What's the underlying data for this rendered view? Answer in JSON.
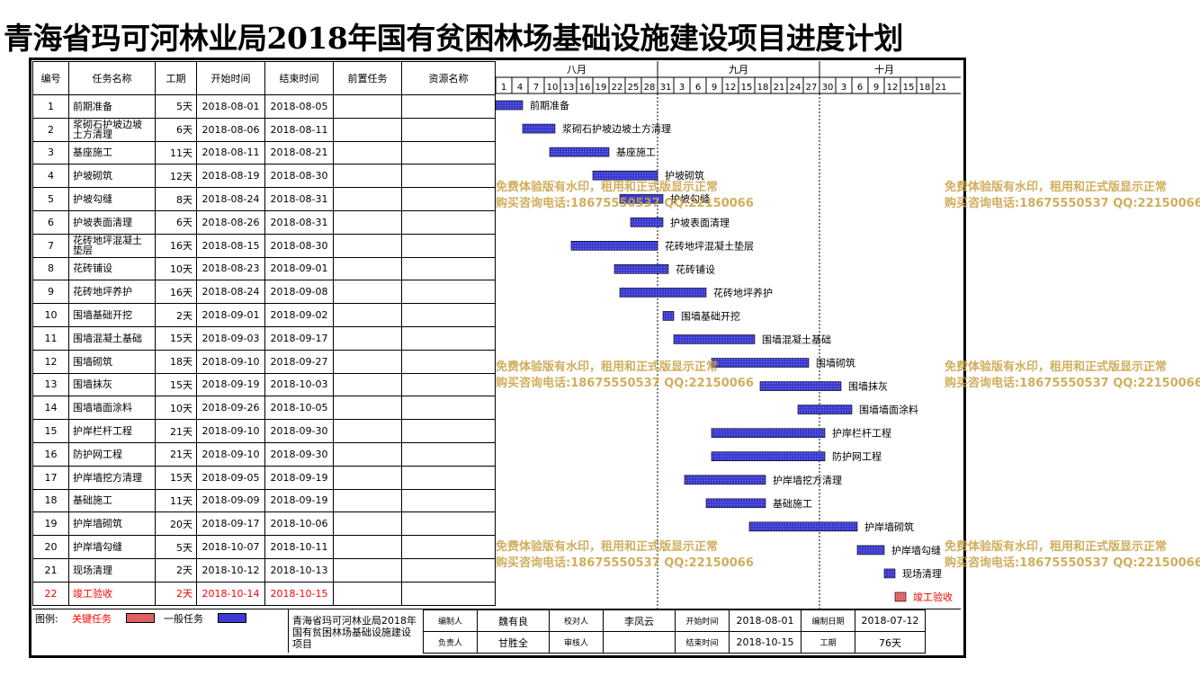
{
  "title": "青海省玛可河林业局2018年国有贫困林场基础设施建设项目进度计划",
  "headers": [
    "编号",
    "任务名称",
    "工期",
    "开始时间",
    "结束时间",
    "前置任务",
    "资源名称"
  ],
  "timeline": {
    "months": [
      "八月",
      "九月",
      "十月"
    ],
    "days": [
      "1",
      "4",
      "7",
      "10",
      "13",
      "16",
      "19",
      "22",
      "25",
      "28",
      "31",
      "3",
      "6",
      "9",
      "12",
      "15",
      "18",
      "21",
      "24",
      "27",
      "30",
      "3",
      "6",
      "9",
      "12",
      "15",
      "18",
      "21"
    ]
  },
  "rows": [
    {
      "id": "1",
      "name": "前期准备",
      "duration": "5天",
      "start": "2018-08-01",
      "end": "2018-08-05",
      "critical": false
    },
    {
      "id": "2",
      "name": "浆砌石护坡边坡土方清理",
      "duration": "6天",
      "start": "2018-08-06",
      "end": "2018-08-11",
      "critical": false
    },
    {
      "id": "3",
      "name": "基座施工",
      "duration": "11天",
      "start": "2018-08-11",
      "end": "2018-08-21",
      "critical": false
    },
    {
      "id": "4",
      "name": "护坡砌筑",
      "duration": "12天",
      "start": "2018-08-19",
      "end": "2018-08-30",
      "critical": false
    },
    {
      "id": "5",
      "name": "护坡勾缝",
      "duration": "8天",
      "start": "2018-08-24",
      "end": "2018-08-31",
      "critical": false
    },
    {
      "id": "6",
      "name": "护坡表面清理",
      "duration": "6天",
      "start": "2018-08-26",
      "end": "2018-08-31",
      "critical": false
    },
    {
      "id": "7",
      "name": "花砖地坪混凝土垫层",
      "duration": "16天",
      "start": "2018-08-15",
      "end": "2018-08-30",
      "critical": false
    },
    {
      "id": "8",
      "name": "花砖铺设",
      "duration": "10天",
      "start": "2018-08-23",
      "end": "2018-09-01",
      "critical": false
    },
    {
      "id": "9",
      "name": "花砖地坪养护",
      "duration": "16天",
      "start": "2018-08-24",
      "end": "2018-09-08",
      "critical": false
    },
    {
      "id": "10",
      "name": "围墙基础开挖",
      "duration": "2天",
      "start": "2018-09-01",
      "end": "2018-09-02",
      "critical": false
    },
    {
      "id": "11",
      "name": "围墙混凝土基础",
      "duration": "15天",
      "start": "2018-09-03",
      "end": "2018-09-17",
      "critical": false
    },
    {
      "id": "12",
      "name": "围墙砌筑",
      "duration": "18天",
      "start": "2018-09-10",
      "end": "2018-09-27",
      "critical": false
    },
    {
      "id": "13",
      "name": "围墙抹灰",
      "duration": "15天",
      "start": "2018-09-19",
      "end": "2018-10-03",
      "critical": false
    },
    {
      "id": "14",
      "name": "围墙墙面涂料",
      "duration": "10天",
      "start": "2018-09-26",
      "end": "2018-10-05",
      "critical": false
    },
    {
      "id": "15",
      "name": "护岸栏杆工程",
      "duration": "21天",
      "start": "2018-09-10",
      "end": "2018-09-30",
      "critical": false
    },
    {
      "id": "16",
      "name": "防护网工程",
      "duration": "21天",
      "start": "2018-09-10",
      "end": "2018-09-30",
      "critical": false
    },
    {
      "id": "17",
      "name": "护岸墙挖方清理",
      "duration": "15天",
      "start": "2018-09-05",
      "end": "2018-09-19",
      "critical": false
    },
    {
      "id": "18",
      "name": "基础施工",
      "duration": "11天",
      "start": "2018-09-09",
      "end": "2018-09-19",
      "critical": false
    },
    {
      "id": "19",
      "name": "护岸墙砌筑",
      "duration": "20天",
      "start": "2018-09-17",
      "end": "2018-10-06",
      "critical": false
    },
    {
      "id": "20",
      "name": "护岸墙勾缝",
      "duration": "5天",
      "start": "2018-10-07",
      "end": "2018-10-11",
      "critical": false
    },
    {
      "id": "21",
      "name": "现场清理",
      "duration": "2天",
      "start": "2018-10-12",
      "end": "2018-10-13",
      "critical": false
    },
    {
      "id": "22",
      "name": "竣工验收",
      "duration": "2天",
      "start": "2018-10-14",
      "end": "2018-10-15",
      "critical": true
    }
  ],
  "chart_data": {
    "type": "gantt",
    "x_start": "2018-08-01",
    "x_end": "2018-10-24",
    "colors": {
      "critical": "#e06060",
      "normal": "#3b3bd0"
    },
    "tasks": [
      {
        "label": "前期准备",
        "start": "2018-08-01",
        "end": "2018-08-05"
      },
      {
        "label": "浆砌石护坡边坡土方清理",
        "start": "2018-08-06",
        "end": "2018-08-11"
      },
      {
        "label": "基座施工",
        "start": "2018-08-11",
        "end": "2018-08-21"
      },
      {
        "label": "护坡砌筑",
        "start": "2018-08-19",
        "end": "2018-08-30"
      },
      {
        "label": "护坡勾缝",
        "start": "2018-08-24",
        "end": "2018-08-31"
      },
      {
        "label": "护坡表面清理",
        "start": "2018-08-26",
        "end": "2018-08-31"
      },
      {
        "label": "花砖地坪混凝土垫层",
        "start": "2018-08-15",
        "end": "2018-08-30"
      },
      {
        "label": "花砖铺设",
        "start": "2018-08-23",
        "end": "2018-09-01"
      },
      {
        "label": "花砖地坪养护",
        "start": "2018-08-24",
        "end": "2018-09-08"
      },
      {
        "label": "围墙基础开挖",
        "start": "2018-09-01",
        "end": "2018-09-02"
      },
      {
        "label": "围墙混凝土基础",
        "start": "2018-09-03",
        "end": "2018-09-17"
      },
      {
        "label": "围墙砌筑",
        "start": "2018-09-10",
        "end": "2018-09-27"
      },
      {
        "label": "围墙抹灰",
        "start": "2018-09-19",
        "end": "2018-10-03"
      },
      {
        "label": "围墙墙面涂料",
        "start": "2018-09-26",
        "end": "2018-10-05"
      },
      {
        "label": "护岸栏杆工程",
        "start": "2018-09-10",
        "end": "2018-09-30"
      },
      {
        "label": "防护网工程",
        "start": "2018-09-10",
        "end": "2018-09-30"
      },
      {
        "label": "护岸墙挖方清理",
        "start": "2018-09-05",
        "end": "2018-09-19"
      },
      {
        "label": "基础施工",
        "start": "2018-09-09",
        "end": "2018-09-19"
      },
      {
        "label": "护岸墙砌筑",
        "start": "2018-09-17",
        "end": "2018-10-06"
      },
      {
        "label": "护岸墙勾缝",
        "start": "2018-10-07",
        "end": "2018-10-11"
      },
      {
        "label": "现场清理",
        "start": "2018-10-12",
        "end": "2018-10-13"
      },
      {
        "label": "竣工验收",
        "start": "2018-10-14",
        "end": "2018-10-15",
        "critical": true
      }
    ]
  },
  "watermark": {
    "line1": "免费体验版有水印，租用和正式版显示正常",
    "line2": "购买咨询电话:18675550537 QQ:22150066"
  },
  "footer": {
    "legend_label": "图例:",
    "legend_critical": "关键任务",
    "legend_normal": "一般任务",
    "project_name": "青海省玛可河林业局2018年国有贫困林场基础设施建设项目",
    "compiler_label": "编制人",
    "compiler": "魏有良",
    "checker_label": "校对人",
    "checker": "李凤云",
    "start_label": "开始时间",
    "start": "2018-08-01",
    "date_label": "编制日期",
    "date": "2018-07-12",
    "manager_label": "负责人",
    "manager": "甘胜全",
    "reviewer_label": "审核人",
    "reviewer": "",
    "end_label": "结束时间",
    "end": "2018-10-15",
    "duration_label": "工期",
    "duration": "76天"
  }
}
